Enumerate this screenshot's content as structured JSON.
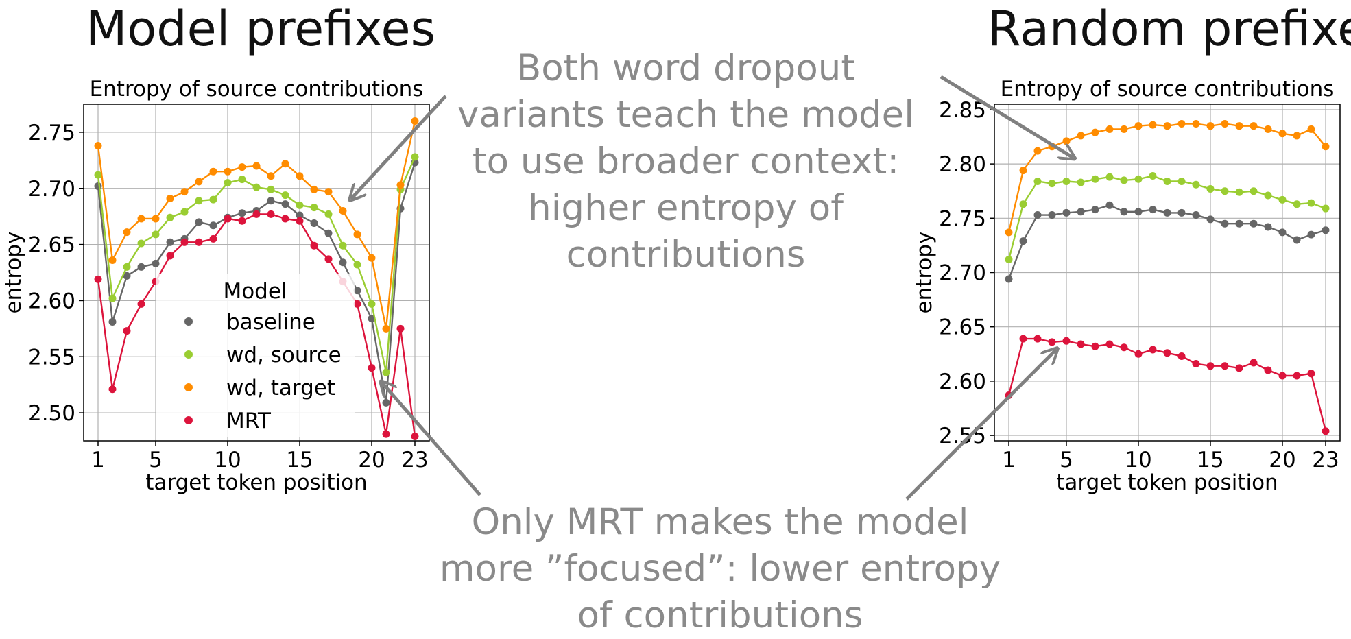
{
  "headings": {
    "left": "Model prefixes",
    "right": "Random prefixes"
  },
  "annotations": {
    "top": "Both word dropout variants teach the model to use broader context: higher entropy of contributions",
    "bottom": "Only MRT makes the model more ”focused”: lower entropy of contributions"
  },
  "legend": {
    "title": "Model"
  },
  "colors": {
    "baseline": "#666666",
    "wd_source": "#9acd32",
    "wd_target": "#ff8c00",
    "mrt": "#dc143c",
    "annotation": "#8a8a8a"
  },
  "chart_data": [
    {
      "type": "line",
      "title": "Entropy of source contributions",
      "xlabel": "target token position",
      "ylabel": "entropy",
      "xlim": [
        0,
        24
      ],
      "ylim": [
        2.475,
        2.775
      ],
      "xticks": [
        1,
        5,
        10,
        15,
        20,
        23
      ],
      "yticks": [
        2.5,
        2.55,
        2.6,
        2.65,
        2.7,
        2.75
      ],
      "grid": true,
      "legend_placement": "lower-center",
      "x": [
        1,
        2,
        3,
        4,
        5,
        6,
        7,
        8,
        9,
        10,
        11,
        12,
        13,
        14,
        15,
        16,
        17,
        18,
        19,
        20,
        21,
        22,
        23
      ],
      "series": [
        {
          "name": "baseline",
          "color": "#666666",
          "values": [
            2.702,
            2.581,
            2.622,
            2.63,
            2.633,
            2.652,
            2.655,
            2.67,
            2.667,
            2.674,
            2.678,
            2.68,
            2.689,
            2.686,
            2.676,
            2.669,
            2.66,
            2.634,
            2.609,
            2.584,
            2.509,
            2.682,
            2.723
          ]
        },
        {
          "name": "wd, source",
          "color": "#9acd32",
          "values": [
            2.712,
            2.602,
            2.63,
            2.651,
            2.659,
            2.674,
            2.679,
            2.689,
            2.69,
            2.705,
            2.708,
            2.701,
            2.699,
            2.694,
            2.685,
            2.683,
            2.677,
            2.649,
            2.632,
            2.597,
            2.536,
            2.699,
            2.728
          ]
        },
        {
          "name": "wd, target",
          "color": "#ff8c00",
          "values": [
            2.738,
            2.636,
            2.661,
            2.673,
            2.673,
            2.691,
            2.697,
            2.706,
            2.715,
            2.715,
            2.719,
            2.72,
            2.711,
            2.722,
            2.711,
            2.699,
            2.697,
            2.68,
            2.659,
            2.638,
            2.575,
            2.703,
            2.76
          ]
        },
        {
          "name": "MRT",
          "color": "#dc143c",
          "values": [
            2.619,
            2.521,
            2.573,
            2.597,
            2.617,
            2.64,
            2.652,
            2.652,
            2.655,
            2.673,
            2.671,
            2.677,
            2.677,
            2.673,
            2.671,
            2.649,
            2.637,
            2.617,
            2.597,
            2.54,
            2.481,
            2.575,
            2.479
          ]
        }
      ]
    },
    {
      "type": "line",
      "title": "Entropy of source contributions",
      "xlabel": "target token position",
      "ylabel": "entropy",
      "xlim": [
        0,
        24
      ],
      "ylim": [
        2.545,
        2.855
      ],
      "xticks": [
        1,
        5,
        10,
        15,
        20,
        23
      ],
      "yticks": [
        2.55,
        2.6,
        2.65,
        2.7,
        2.75,
        2.8,
        2.85
      ],
      "grid": true,
      "x": [
        1,
        2,
        3,
        4,
        5,
        6,
        7,
        8,
        9,
        10,
        11,
        12,
        13,
        14,
        15,
        16,
        17,
        18,
        19,
        20,
        21,
        22,
        23
      ],
      "series": [
        {
          "name": "baseline",
          "color": "#666666",
          "values": [
            2.694,
            2.729,
            2.753,
            2.753,
            2.755,
            2.756,
            2.758,
            2.762,
            2.756,
            2.756,
            2.758,
            2.755,
            2.755,
            2.753,
            2.749,
            2.745,
            2.745,
            2.745,
            2.742,
            2.737,
            2.73,
            2.735,
            2.739
          ]
        },
        {
          "name": "wd, source",
          "color": "#9acd32",
          "values": [
            2.712,
            2.763,
            2.784,
            2.782,
            2.784,
            2.783,
            2.786,
            2.788,
            2.785,
            2.786,
            2.789,
            2.784,
            2.784,
            2.781,
            2.777,
            2.775,
            2.774,
            2.775,
            2.771,
            2.767,
            2.763,
            2.764,
            2.759
          ]
        },
        {
          "name": "wd, target",
          "color": "#ff8c00",
          "values": [
            2.737,
            2.794,
            2.812,
            2.816,
            2.821,
            2.826,
            2.829,
            2.832,
            2.832,
            2.835,
            2.836,
            2.835,
            2.837,
            2.837,
            2.835,
            2.837,
            2.835,
            2.835,
            2.832,
            2.828,
            2.826,
            2.832,
            2.816
          ]
        },
        {
          "name": "MRT",
          "color": "#dc143c",
          "values": [
            2.587,
            2.639,
            2.639,
            2.636,
            2.637,
            2.634,
            2.632,
            2.634,
            2.631,
            2.625,
            2.629,
            2.626,
            2.623,
            2.616,
            2.614,
            2.614,
            2.612,
            2.617,
            2.61,
            2.605,
            2.605,
            2.607,
            2.554
          ]
        }
      ]
    }
  ]
}
